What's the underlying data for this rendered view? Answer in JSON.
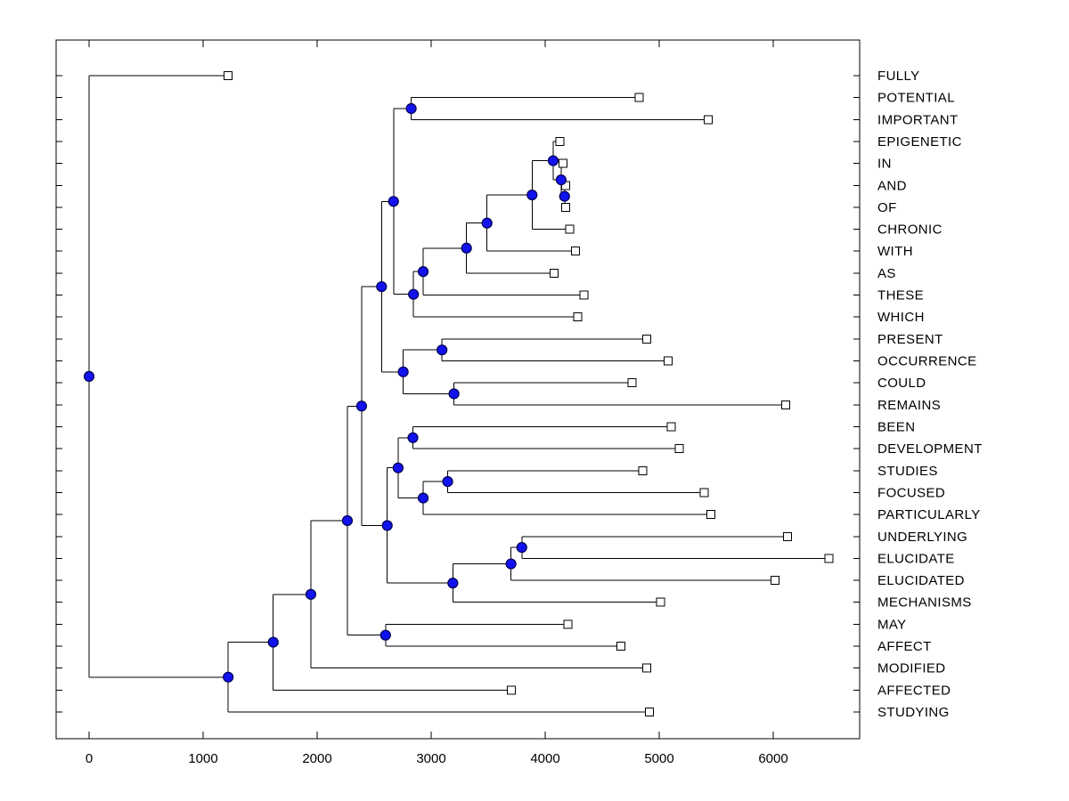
{
  "figure": {
    "background": "#ffffff",
    "border_color": "#000000",
    "branch_color": "#000000",
    "node_fill": "#1212ee",
    "node_stroke": "#000050",
    "tip_fill": "#ffffff",
    "tip_stroke": "#000000",
    "text_color": "#000000"
  },
  "chart_data": {
    "type": "dendrogram",
    "orientation": "left-to-right",
    "title": "",
    "xlabel": "",
    "ylabel": "",
    "x_ticks": [
      0,
      1000,
      2000,
      3000,
      4000,
      5000,
      6000
    ],
    "xlim": [
      -290,
      6760
    ],
    "grid": false,
    "legend": null,
    "leaf_labels_position": "right",
    "marker_internal": "filled-blue-circle",
    "marker_leaf": "open-square",
    "leaves": [
      {
        "label": "FULLY",
        "x": 1220
      },
      {
        "label": "POTENTIAL",
        "x": 4825
      },
      {
        "label": "IMPORTANT",
        "x": 5430
      },
      {
        "label": "EPIGENETIC",
        "x": 4130
      },
      {
        "label": "IN",
        "x": 4155
      },
      {
        "label": "AND",
        "x": 4180
      },
      {
        "label": "OF",
        "x": 4180
      },
      {
        "label": "CHRONIC",
        "x": 4215
      },
      {
        "label": "WITH",
        "x": 4265
      },
      {
        "label": "AS",
        "x": 4080
      },
      {
        "label": "THESE",
        "x": 4340
      },
      {
        "label": "WHICH",
        "x": 4285
      },
      {
        "label": "PRESENT",
        "x": 4890
      },
      {
        "label": "OCCURRENCE",
        "x": 5080
      },
      {
        "label": "COULD",
        "x": 4760
      },
      {
        "label": "REMAINS",
        "x": 6110
      },
      {
        "label": "BEEN",
        "x": 5105
      },
      {
        "label": "DEVELOPMENT",
        "x": 5175
      },
      {
        "label": "STUDIES",
        "x": 4855
      },
      {
        "label": "FOCUSED",
        "x": 5395
      },
      {
        "label": "PARTICULARLY",
        "x": 5455
      },
      {
        "label": "UNDERLYING",
        "x": 6125
      },
      {
        "label": "ELUCIDATE",
        "x": 6490
      },
      {
        "label": "ELUCIDATED",
        "x": 6015
      },
      {
        "label": "MECHANISMS",
        "x": 5010
      },
      {
        "label": "MAY",
        "x": 4200
      },
      {
        "label": "AFFECT",
        "x": 4665
      },
      {
        "label": "MODIFIED",
        "x": 4890
      },
      {
        "label": "AFFECTED",
        "x": 3705
      },
      {
        "label": "STUDYING",
        "x": 4915
      }
    ],
    "nodes": [
      {
        "id": "n1",
        "x": 4170,
        "children": [
          "AND",
          "OF"
        ]
      },
      {
        "id": "n2",
        "x": 4140,
        "children": [
          "IN",
          "n1"
        ]
      },
      {
        "id": "n3",
        "x": 4070,
        "children": [
          "EPIGENETIC",
          "n2"
        ]
      },
      {
        "id": "n4",
        "x": 3885,
        "children": [
          "n3",
          "CHRONIC"
        ]
      },
      {
        "id": "n5",
        "x": 3490,
        "children": [
          "n4",
          "WITH"
        ]
      },
      {
        "id": "n6",
        "x": 3310,
        "children": [
          "n5",
          "AS"
        ]
      },
      {
        "id": "n7",
        "x": 2930,
        "children": [
          "n6",
          "THESE"
        ]
      },
      {
        "id": "n8",
        "x": 2845,
        "children": [
          "n7",
          "WHICH"
        ]
      },
      {
        "id": "n9",
        "x": 2825,
        "children": [
          "POTENTIAL",
          "IMPORTANT"
        ]
      },
      {
        "id": "n10",
        "x": 2670,
        "children": [
          "n9",
          "n8"
        ]
      },
      {
        "id": "n11",
        "x": 3095,
        "children": [
          "PRESENT",
          "OCCURRENCE"
        ]
      },
      {
        "id": "n12",
        "x": 3200,
        "children": [
          "COULD",
          "REMAINS"
        ]
      },
      {
        "id": "n13",
        "x": 2755,
        "children": [
          "n11",
          "n12"
        ]
      },
      {
        "id": "n14",
        "x": 2565,
        "children": [
          "n10",
          "n13"
        ]
      },
      {
        "id": "n15",
        "x": 2840,
        "children": [
          "BEEN",
          "DEVELOPMENT"
        ]
      },
      {
        "id": "n16",
        "x": 3145,
        "children": [
          "STUDIES",
          "FOCUSED"
        ]
      },
      {
        "id": "n17",
        "x": 2930,
        "children": [
          "n16",
          "PARTICULARLY"
        ]
      },
      {
        "id": "n18",
        "x": 2710,
        "children": [
          "n15",
          "n17"
        ]
      },
      {
        "id": "n19",
        "x": 3795,
        "children": [
          "UNDERLYING",
          "ELUCIDATE"
        ]
      },
      {
        "id": "n20",
        "x": 3700,
        "children": [
          "n19",
          "ELUCIDATED"
        ]
      },
      {
        "id": "n21",
        "x": 3190,
        "children": [
          "n20",
          "MECHANISMS"
        ]
      },
      {
        "id": "n22",
        "x": 2615,
        "children": [
          "n18",
          "n21"
        ]
      },
      {
        "id": "n23",
        "x": 2390,
        "children": [
          "n14",
          "n22"
        ]
      },
      {
        "id": "n24",
        "x": 2600,
        "children": [
          "MAY",
          "AFFECT"
        ]
      },
      {
        "id": "n25",
        "x": 2265,
        "children": [
          "n23",
          "n24"
        ]
      },
      {
        "id": "n26",
        "x": 1945,
        "children": [
          "n25",
          "MODIFIED"
        ]
      },
      {
        "id": "n27",
        "x": 1615,
        "children": [
          "n26",
          "AFFECTED"
        ]
      },
      {
        "id": "n28",
        "x": 1220,
        "children": [
          "n27",
          "STUDYING"
        ]
      },
      {
        "id": "root",
        "x": 0,
        "children": [
          "FULLY",
          "n28"
        ]
      }
    ]
  }
}
